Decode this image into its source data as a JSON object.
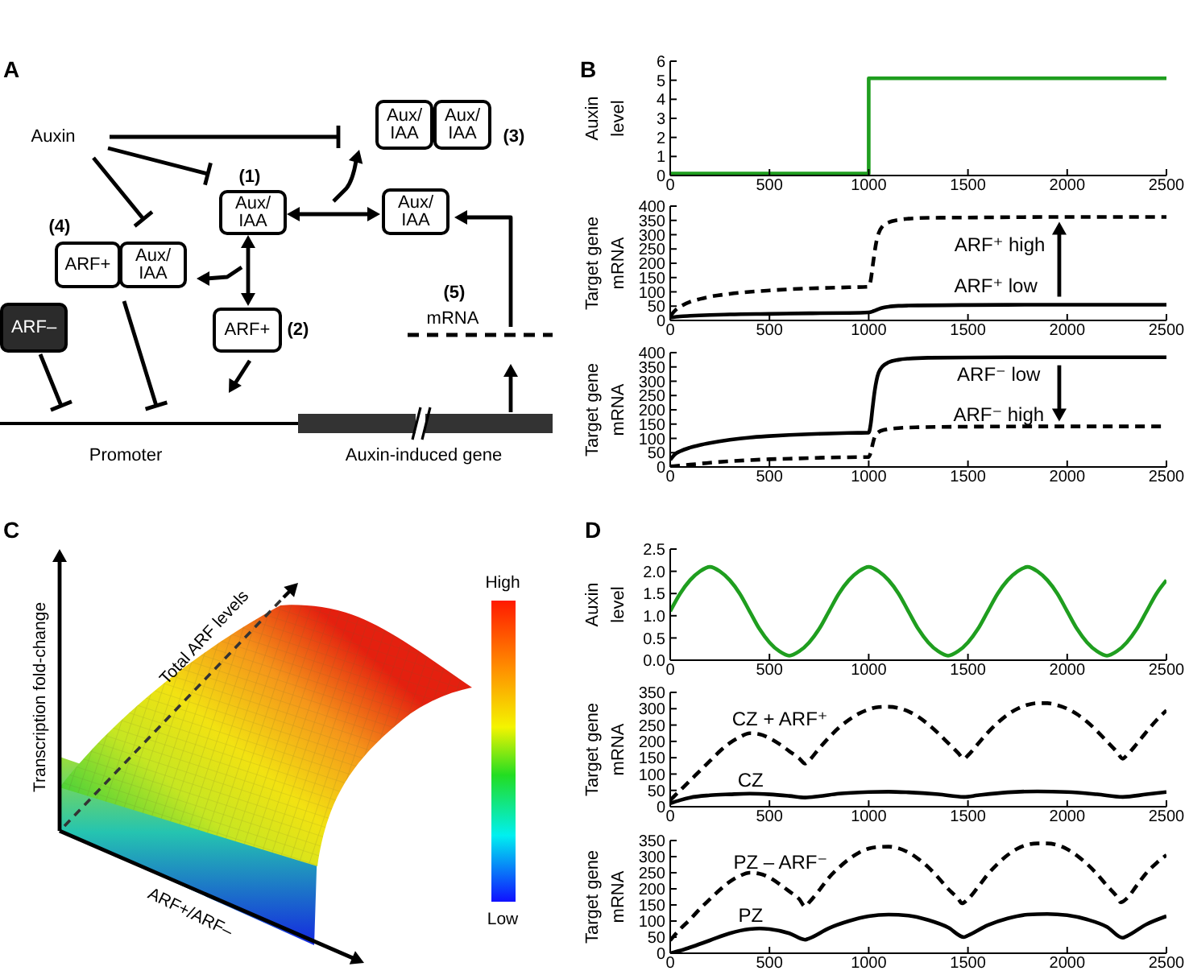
{
  "chart_data": [
    {
      "type": "other",
      "title": "A",
      "annotations": [
        "Auxin",
        "Aux/\nIAA",
        "Aux/\nIAA",
        "(3)",
        "(1)",
        "Aux/\nIAA",
        "Aux/\nIAA",
        "(4)",
        "ARF+",
        "Aux/\nIAA",
        "(5)",
        "mRNA",
        "ARF–",
        "ARF+",
        "(2)",
        "Promoter",
        "Auxin-induced gene"
      ]
    },
    {
      "type": "step",
      "title": "B",
      "ylabel": "Auxin\nlevel",
      "x": [
        0,
        1000,
        2500
      ],
      "series": [
        {
          "color": "#1f9e1f",
          "values": [
            0.1,
            5.1,
            5.1
          ]
        }
      ],
      "xlim": [
        0,
        2500
      ],
      "xticks": [
        0,
        500,
        1000,
        1500,
        2000,
        2500
      ],
      "ylim": [
        0,
        6
      ],
      "yticks": [
        0,
        1,
        2,
        3,
        4,
        5,
        6
      ]
    },
    {
      "type": "line",
      "ylabel": "Target gene\nmRNA",
      "series": [
        {
          "color": "#000000",
          "line_style": "solid",
          "x": [
            0,
            50,
            100,
            200,
            300,
            500,
            700,
            900,
            1000,
            1025,
            1050,
            1075,
            1100,
            1150,
            1200,
            1500,
            2000,
            2500
          ],
          "values": [
            10,
            14,
            16,
            19,
            21,
            23,
            25,
            26,
            28,
            33,
            40,
            45,
            48,
            51,
            52,
            54,
            55,
            55
          ]
        },
        {
          "color": "#000000",
          "line_style": "dashed",
          "x": [
            0,
            25,
            50,
            100,
            150,
            200,
            300,
            400,
            500,
            600,
            700,
            800,
            900,
            1000,
            1010,
            1020,
            1030,
            1040,
            1050,
            1070,
            1100,
            1150,
            1200,
            1300,
            1500,
            2000,
            2500
          ],
          "values": [
            15,
            35,
            48,
            65,
            75,
            83,
            93,
            100,
            105,
            109,
            112,
            114,
            116,
            118,
            140,
            190,
            240,
            280,
            305,
            330,
            343,
            352,
            356,
            359,
            360,
            362,
            362
          ]
        }
      ],
      "xlim": [
        0,
        2500
      ],
      "xticks": [
        0,
        500,
        1000,
        1500,
        2000,
        2500
      ],
      "ylim": [
        0,
        400
      ],
      "yticks": [
        0,
        50,
        100,
        150,
        200,
        250,
        300,
        350,
        400
      ],
      "annotations": [
        "ARF⁺ high",
        "ARF⁺ low"
      ]
    },
    {
      "type": "line",
      "ylabel": "Target gene\nmRNA",
      "series": [
        {
          "color": "#000000",
          "line_style": "solid",
          "x": [
            0,
            25,
            50,
            100,
            150,
            200,
            300,
            400,
            500,
            600,
            700,
            800,
            900,
            1000,
            1010,
            1020,
            1030,
            1040,
            1050,
            1070,
            1100,
            1150,
            1200,
            1300,
            1500,
            2000,
            2500
          ],
          "values": [
            25,
            45,
            55,
            68,
            77,
            84,
            95,
            103,
            108,
            112,
            115,
            117,
            119,
            120,
            150,
            210,
            265,
            305,
            330,
            352,
            366,
            375,
            379,
            382,
            383,
            384,
            384
          ]
        },
        {
          "color": "#000000",
          "line_style": "dashed",
          "x": [
            0,
            100,
            200,
            300,
            400,
            500,
            600,
            700,
            800,
            900,
            1000,
            1010,
            1020,
            1030,
            1050,
            1080,
            1150,
            1250,
            1500,
            2000,
            2500
          ],
          "values": [
            2,
            8,
            15,
            20,
            24,
            27,
            29,
            31,
            33,
            34,
            35,
            50,
            80,
            105,
            122,
            130,
            136,
            139,
            141,
            142,
            142
          ]
        }
      ],
      "xlim": [
        0,
        2500
      ],
      "xticks": [
        0,
        500,
        1000,
        1500,
        2000,
        2500
      ],
      "ylim": [
        0,
        400
      ],
      "yticks": [
        0,
        50,
        100,
        150,
        200,
        250,
        300,
        350,
        400
      ],
      "annotations": [
        "ARF⁻ low",
        "ARF⁻ high"
      ]
    },
    {
      "type": "other",
      "title": "C",
      "xlabel": "ARF+/ARF–",
      "ylabel": "Transcription fold-change",
      "annotations": [
        "Total ARF levels",
        "High",
        "Low"
      ]
    },
    {
      "type": "line",
      "title": "D",
      "ylabel": "Auxin\nlevel",
      "x": [
        0,
        50,
        100,
        150,
        200,
        250,
        300,
        350,
        400,
        450,
        500,
        550,
        600,
        650,
        700,
        750,
        800,
        850,
        900,
        950,
        1000,
        1050,
        1100,
        1150,
        1200,
        1250,
        1300,
        1350,
        1400,
        1450,
        1500,
        1550,
        1600,
        1650,
        1700,
        1750,
        1800,
        1850,
        1900,
        1950,
        2000,
        2050,
        2100,
        2150,
        2200,
        2250,
        2300,
        2350,
        2400,
        2450,
        2500
      ],
      "series": [
        {
          "color": "#1f9e1f",
          "values": [
            1.1,
            1.5,
            1.8,
            2.0,
            2.1,
            2.0,
            1.8,
            1.5,
            1.1,
            0.7,
            0.4,
            0.2,
            0.1,
            0.2,
            0.4,
            0.7,
            1.1,
            1.5,
            1.8,
            2.0,
            2.1,
            2.0,
            1.8,
            1.5,
            1.1,
            0.7,
            0.4,
            0.2,
            0.1,
            0.2,
            0.4,
            0.7,
            1.1,
            1.5,
            1.8,
            2.0,
            2.1,
            2.0,
            1.8,
            1.5,
            1.1,
            0.7,
            0.4,
            0.2,
            0.1,
            0.2,
            0.4,
            0.7,
            1.1,
            1.5,
            1.8
          ]
        }
      ],
      "xlim": [
        0,
        2500
      ],
      "xticks": [
        0,
        500,
        1000,
        1500,
        2000,
        2500
      ],
      "ylim": [
        0,
        2.5
      ],
      "yticks": [
        {
          "value": 0,
          "label": "0.0"
        },
        0.5,
        {
          "value": 1,
          "label": "1.0"
        },
        1.5,
        {
          "value": 2,
          "label": "2.0"
        },
        2.5
      ]
    },
    {
      "type": "line",
      "ylabel": "Target gene\nmRNA",
      "series": [
        {
          "color": "#000000",
          "line_style": "solid",
          "x": [
            0,
            50,
            100,
            200,
            300,
            400,
            500,
            600,
            680,
            750,
            850,
            1000,
            1100,
            1200,
            1350,
            1480,
            1550,
            1700,
            1850,
            2000,
            2150,
            2280,
            2400,
            2500
          ],
          "values": [
            10,
            20,
            28,
            35,
            38,
            40,
            38,
            33,
            28,
            32,
            40,
            45,
            46,
            44,
            38,
            30,
            35,
            44,
            47,
            45,
            38,
            30,
            38,
            45
          ]
        },
        {
          "color": "#000000",
          "line_style": "dashed",
          "x": [
            0,
            50,
            100,
            150,
            200,
            250,
            300,
            350,
            400,
            450,
            500,
            550,
            600,
            650,
            680,
            700,
            750,
            800,
            850,
            900,
            950,
            1000,
            1050,
            1100,
            1150,
            1200,
            1250,
            1300,
            1350,
            1400,
            1450,
            1480,
            1500,
            1550,
            1600,
            1650,
            1700,
            1750,
            1800,
            1850,
            1900,
            1950,
            2000,
            2050,
            2100,
            2150,
            2200,
            2250,
            2280,
            2300,
            2350,
            2400,
            2450,
            2500
          ],
          "values": [
            20,
            50,
            80,
            110,
            140,
            170,
            195,
            213,
            225,
            222,
            210,
            192,
            170,
            148,
            132,
            142,
            178,
            212,
            242,
            266,
            285,
            298,
            305,
            306,
            302,
            292,
            275,
            252,
            225,
            195,
            165,
            147,
            157,
            192,
            227,
            257,
            282,
            300,
            312,
            317,
            317,
            311,
            300,
            283,
            260,
            232,
            200,
            168,
            147,
            157,
            192,
            230,
            265,
            295
          ]
        }
      ],
      "xlim": [
        0,
        2500
      ],
      "xticks": [
        0,
        500,
        1000,
        1500,
        2000,
        2500
      ],
      "ylim": [
        0,
        350
      ],
      "yticks": [
        0,
        50,
        100,
        150,
        200,
        250,
        300,
        350
      ],
      "annotations": [
        "CZ + ARF⁺",
        "CZ"
      ]
    },
    {
      "type": "line",
      "ylabel": "Target gene\nmRNA",
      "series": [
        {
          "color": "#000000",
          "line_style": "solid",
          "x": [
            0,
            50,
            100,
            200,
            300,
            400,
            450,
            500,
            600,
            680,
            700,
            800,
            900,
            1000,
            1100,
            1200,
            1300,
            1400,
            1480,
            1500,
            1600,
            1700,
            1800,
            1900,
            2000,
            2100,
            2200,
            2280,
            2300,
            2400,
            2500
          ],
          "values": [
            0,
            8,
            18,
            40,
            62,
            75,
            77,
            75,
            62,
            42,
            46,
            78,
            100,
            115,
            120,
            117,
            103,
            80,
            50,
            55,
            87,
            108,
            120,
            122,
            118,
            105,
            82,
            48,
            53,
            90,
            115
          ]
        },
        {
          "color": "#000000",
          "line_style": "dashed",
          "x": [
            0,
            50,
            100,
            150,
            200,
            250,
            300,
            350,
            400,
            450,
            500,
            550,
            600,
            650,
            680,
            700,
            750,
            800,
            850,
            900,
            950,
            1000,
            1050,
            1100,
            1150,
            1200,
            1250,
            1300,
            1350,
            1400,
            1450,
            1470,
            1500,
            1550,
            1600,
            1650,
            1700,
            1750,
            1800,
            1850,
            1900,
            1950,
            2000,
            2050,
            2100,
            2150,
            2200,
            2250,
            2270,
            2300,
            2350,
            2400,
            2450,
            2500
          ],
          "values": [
            40,
            75,
            105,
            138,
            168,
            197,
            222,
            240,
            250,
            247,
            235,
            215,
            192,
            168,
            145,
            158,
            195,
            235,
            266,
            292,
            312,
            325,
            330,
            331,
            326,
            313,
            293,
            267,
            235,
            200,
            170,
            155,
            168,
            205,
            245,
            278,
            305,
            325,
            337,
            341,
            341,
            336,
            323,
            303,
            277,
            246,
            210,
            176,
            158,
            170,
            210,
            250,
            280,
            305
          ]
        }
      ],
      "xlim": [
        0,
        2500
      ],
      "xticks": [
        0,
        500,
        1000,
        1500,
        2000,
        2500
      ],
      "ylim": [
        0,
        350
      ],
      "yticks": [
        0,
        50,
        100,
        150,
        200,
        250,
        300,
        350
      ],
      "annotations": [
        "PZ – ARF⁻",
        "PZ"
      ]
    }
  ]
}
